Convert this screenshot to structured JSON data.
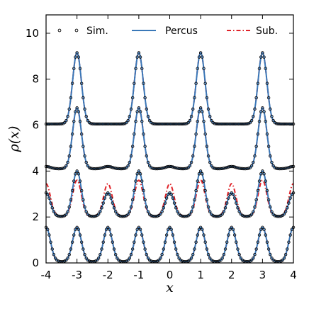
{
  "chart_data": {
    "type": "line",
    "xlabel": "x",
    "ylabel": "ρ(x)",
    "xlim": [
      -4,
      4
    ],
    "ylim": [
      0,
      10.8
    ],
    "xticks": [
      -4,
      -3,
      -2,
      -1,
      0,
      1,
      2,
      3,
      4
    ],
    "xtick_labels": [
      "-4",
      "-3",
      "-2",
      "-1",
      "0",
      "1",
      "2",
      "3",
      "4"
    ],
    "yticks": [
      0,
      2,
      4,
      6,
      8,
      10
    ],
    "ytick_labels": [
      "0",
      "2",
      "4",
      "6",
      "8",
      "10"
    ],
    "legend_position": "top",
    "series": [
      {
        "name": "Sim.",
        "style": "open-circles",
        "color": "#000000"
      },
      {
        "name": "Percus",
        "style": "solid",
        "color": "#3a78b8"
      },
      {
        "name": "Sub.",
        "style": "dash-dot",
        "color": "#e0242a"
      }
    ],
    "profiles": [
      {
        "offset": 0,
        "base": 0.05,
        "peaks": [
          {
            "x": -4,
            "h": 1.55
          },
          {
            "x": -3,
            "h": 1.55
          },
          {
            "x": -2,
            "h": 1.55
          },
          {
            "x": -1,
            "h": 1.55
          },
          {
            "x": 0,
            "h": 1.55
          },
          {
            "x": 1,
            "h": 1.55
          },
          {
            "x": 2,
            "h": 1.55
          },
          {
            "x": 3,
            "h": 1.55
          },
          {
            "x": 4,
            "h": 1.55
          }
        ]
      },
      {
        "offset": 2,
        "base": 0.02,
        "percus_peaks": [
          {
            "x": -4,
            "h": 1.05
          },
          {
            "x": -3,
            "h": 2.0
          },
          {
            "x": -2,
            "h": 1.05
          },
          {
            "x": -1,
            "h": 2.0
          },
          {
            "x": 0,
            "h": 1.05
          },
          {
            "x": 1,
            "h": 2.0
          },
          {
            "x": 2,
            "h": 1.05
          },
          {
            "x": 3,
            "h": 2.0
          },
          {
            "x": 4,
            "h": 1.05
          }
        ],
        "sub_peaks": [
          {
            "x": -4,
            "h": 1.45
          },
          {
            "x": -3,
            "h": 1.6
          },
          {
            "x": -2,
            "h": 1.45
          },
          {
            "x": -1,
            "h": 1.6
          },
          {
            "x": 0,
            "h": 1.45
          },
          {
            "x": 1,
            "h": 1.6
          },
          {
            "x": 2,
            "h": 1.45
          },
          {
            "x": 3,
            "h": 1.6
          },
          {
            "x": 4,
            "h": 1.45
          }
        ]
      },
      {
        "offset": 4,
        "base": 0.1,
        "peaks": [
          {
            "x": -4,
            "h": 0.2
          },
          {
            "x": -3,
            "h": 2.75
          },
          {
            "x": -2,
            "h": 0.2
          },
          {
            "x": -1,
            "h": 2.75
          },
          {
            "x": 0,
            "h": 0.2
          },
          {
            "x": 1,
            "h": 2.75
          },
          {
            "x": 2,
            "h": 0.2
          },
          {
            "x": 3,
            "h": 2.75
          },
          {
            "x": 4,
            "h": 0.2
          }
        ]
      },
      {
        "offset": 6,
        "base": 0.05,
        "peaks": [
          {
            "x": -3,
            "h": 3.15
          },
          {
            "x": -1,
            "h": 3.15
          },
          {
            "x": 1,
            "h": 3.15
          },
          {
            "x": 3,
            "h": 3.15
          }
        ]
      }
    ]
  }
}
